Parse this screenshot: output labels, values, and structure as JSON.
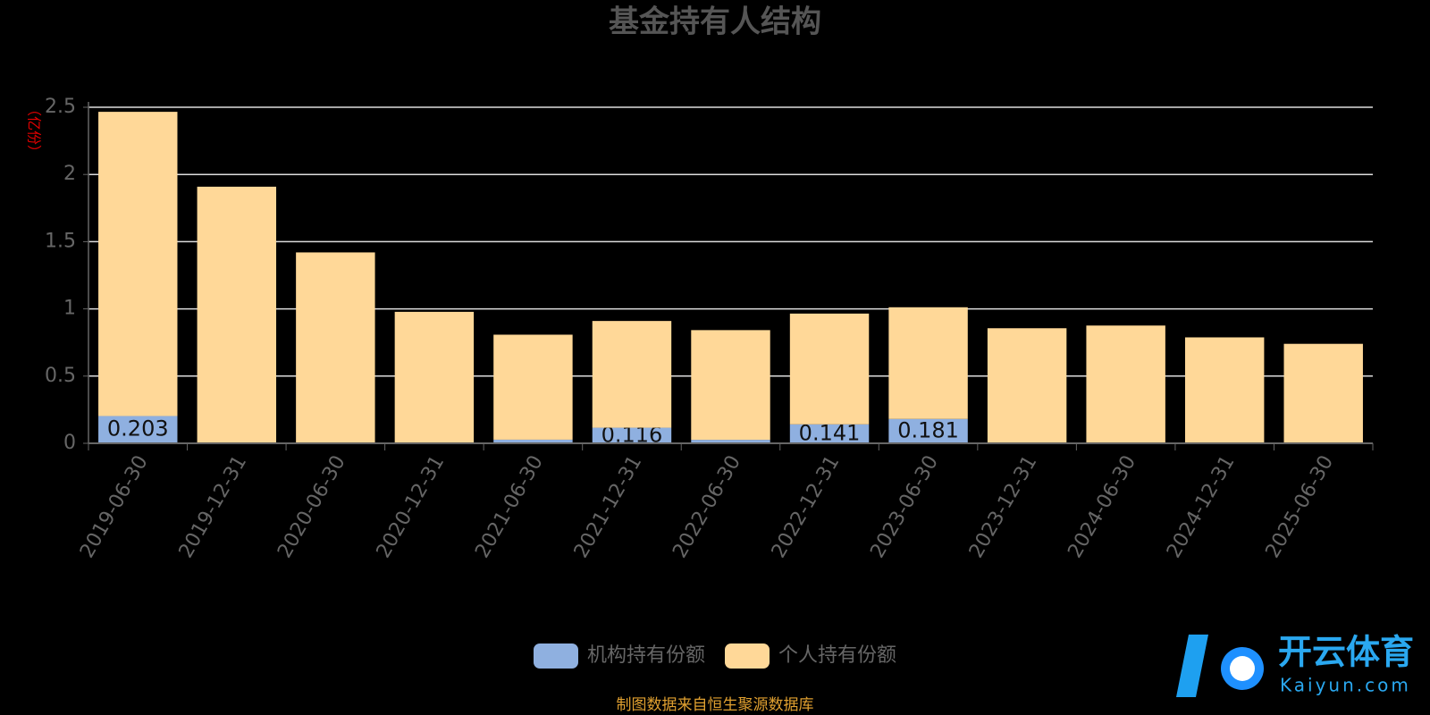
{
  "chart_data": {
    "type": "stacked_bar",
    "title": "基金持有人结构",
    "y_label": "（亿份）",
    "categories": [
      "2019-06-30",
      "2019-12-31",
      "2020-06-30",
      "2020-12-31",
      "2021-06-30",
      "2021-12-31",
      "2022-06-30",
      "2022-12-31",
      "2023-06-30",
      "2023-12-31",
      "2024-06-30",
      "2024-12-31",
      "2025-06-30"
    ],
    "series": [
      {
        "name": "机构持有份额",
        "color": "#8fb0e0",
        "values": [
          0.203,
          0.002,
          0.002,
          0.002,
          0.027,
          0.116,
          0.026,
          0.141,
          0.181,
          0.002,
          0.002,
          0.002,
          0.002
        ]
      },
      {
        "name": "个人持有份额",
        "color": "#ffd898",
        "values": [
          2.263,
          1.907,
          1.418,
          0.976,
          0.781,
          0.794,
          0.816,
          0.824,
          0.831,
          0.854,
          0.874,
          0.786,
          0.738
        ]
      }
    ],
    "ylim": [
      0,
      2.5
    ],
    "yticks": [
      0,
      0.5,
      1,
      1.5,
      2,
      2.5
    ],
    "grid": true,
    "legend": "bottom"
  },
  "source": "制图数据来自恒生聚源数据库",
  "watermark": {
    "title": "开云体育",
    "subtitle": "Kaiyun.com"
  }
}
